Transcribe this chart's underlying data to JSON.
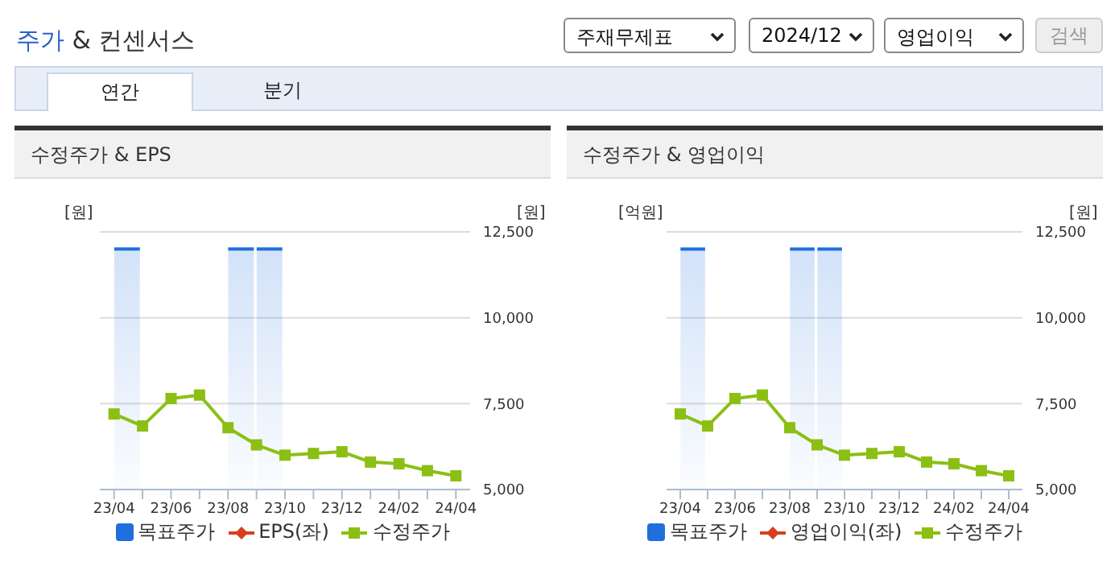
{
  "chart_data": [
    {
      "type": "other",
      "title": "주가 & 컨센서스",
      "annotations": [
        "주재무제표",
        "2024/12",
        "영업이익",
        "검색",
        "연간",
        "분기"
      ]
    },
    {
      "type": "line",
      "title": "수정주가 & EPS",
      "ylabel": "[원]",
      "y2label": "[원]",
      "categories": [
        "23/04",
        null,
        "23/06",
        null,
        "23/08",
        null,
        "23/10",
        null,
        "23/12",
        null,
        "24/02",
        null,
        "24/04"
      ],
      "series": [
        {
          "name": "목표주가",
          "type": "bar",
          "axis": "y2",
          "color": "#1f6fde",
          "values": [
            12000,
            null,
            null,
            null,
            12000,
            12000,
            null,
            null,
            null,
            null,
            null,
            null,
            null
          ]
        },
        {
          "name": "EPS(좌)",
          "type": "line",
          "marker": "diamond",
          "color": "#d6401c",
          "values": [
            null,
            null,
            null,
            null,
            null,
            null,
            null,
            null,
            null,
            null,
            null,
            null,
            null
          ]
        },
        {
          "name": "수정주가",
          "type": "line",
          "axis": "y2",
          "marker": "square",
          "color": "#8cbf14",
          "values": [
            7200,
            6850,
            7650,
            7750,
            6800,
            6300,
            6000,
            6050,
            6100,
            5800,
            5750,
            5550,
            5400
          ]
        }
      ],
      "y2lim": [
        5000,
        12500
      ],
      "y2ticks": [
        {
          "value": 5000,
          "label": "5,000"
        },
        {
          "value": 7500,
          "label": "7,500"
        },
        {
          "value": 10000,
          "label": "10,000"
        },
        {
          "value": 12500,
          "label": "12,500"
        }
      ],
      "grid": "y",
      "legend": "bottom"
    },
    {
      "type": "line",
      "title": "수정주가 & 영업이익",
      "ylabel": "[억원]",
      "y2label": "[원]",
      "categories": [
        "23/04",
        null,
        "23/06",
        null,
        "23/08",
        null,
        "23/10",
        null,
        "23/12",
        null,
        "24/02",
        null,
        "24/04"
      ],
      "series": [
        {
          "name": "목표주가",
          "type": "bar",
          "axis": "y2",
          "color": "#1f6fde",
          "values": [
            12000,
            null,
            null,
            null,
            12000,
            12000,
            null,
            null,
            null,
            null,
            null,
            null,
            null
          ]
        },
        {
          "name": "영업이익(좌)",
          "type": "line",
          "marker": "diamond",
          "color": "#d6401c",
          "values": [
            null,
            null,
            null,
            null,
            null,
            null,
            null,
            null,
            null,
            null,
            null,
            null,
            null
          ]
        },
        {
          "name": "수정주가",
          "type": "line",
          "axis": "y2",
          "marker": "square",
          "color": "#8cbf14",
          "values": [
            7200,
            6850,
            7650,
            7750,
            6800,
            6300,
            6000,
            6050,
            6100,
            5800,
            5750,
            5550,
            5400
          ]
        }
      ],
      "y2lim": [
        5000,
        12500
      ],
      "y2ticks": [
        {
          "value": 5000,
          "label": "5,000"
        },
        {
          "value": 7500,
          "label": "7,500"
        },
        {
          "value": 10000,
          "label": "10,000"
        },
        {
          "value": 12500,
          "label": "12,500"
        }
      ],
      "grid": "y",
      "legend": "bottom"
    }
  ]
}
